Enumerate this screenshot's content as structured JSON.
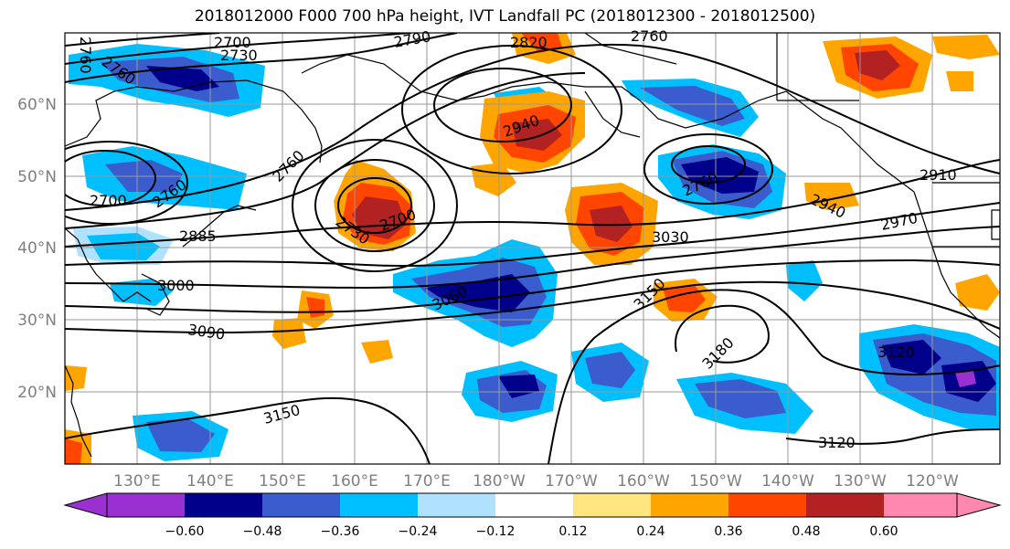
{
  "title": "2018012000 F000 700 hPa height, IVT Landfall PC (2018012300 - 2018012500)",
  "map": {
    "lon_labels": [
      "130°E",
      "140°E",
      "150°E",
      "160°E",
      "170°E",
      "180°W",
      "170°W",
      "160°W",
      "150°W",
      "140°W",
      "130°W",
      "120°W"
    ],
    "lat_labels": [
      "60°N",
      "50°N",
      "40°N",
      "30°N",
      "20°N"
    ],
    "contour_labels": [
      "2700",
      "2730",
      "2760",
      "2790",
      "2820",
      "2760",
      "2760",
      "2700",
      "2760",
      "2885",
      "3000",
      "3090",
      "3150",
      "2760",
      "2730",
      "2700",
      "2940",
      "3030",
      "3060",
      "3150",
      "3180",
      "2760",
      "2910",
      "2940",
      "2970",
      "3120",
      "3120"
    ]
  },
  "colorbar": {
    "ticks": [
      "−0.60",
      "−0.48",
      "−0.36",
      "−0.24",
      "−0.12",
      "0.12",
      "0.24",
      "0.36",
      "0.48",
      "0.60"
    ],
    "colors": [
      "#9b30d0",
      "#00008b",
      "#3a5ccc",
      "#00bfff",
      "#b0e2ff",
      "#ffffff",
      "#ffe680",
      "#ffa500",
      "#ff4500",
      "#b22222",
      "#ff88b0"
    ]
  }
}
